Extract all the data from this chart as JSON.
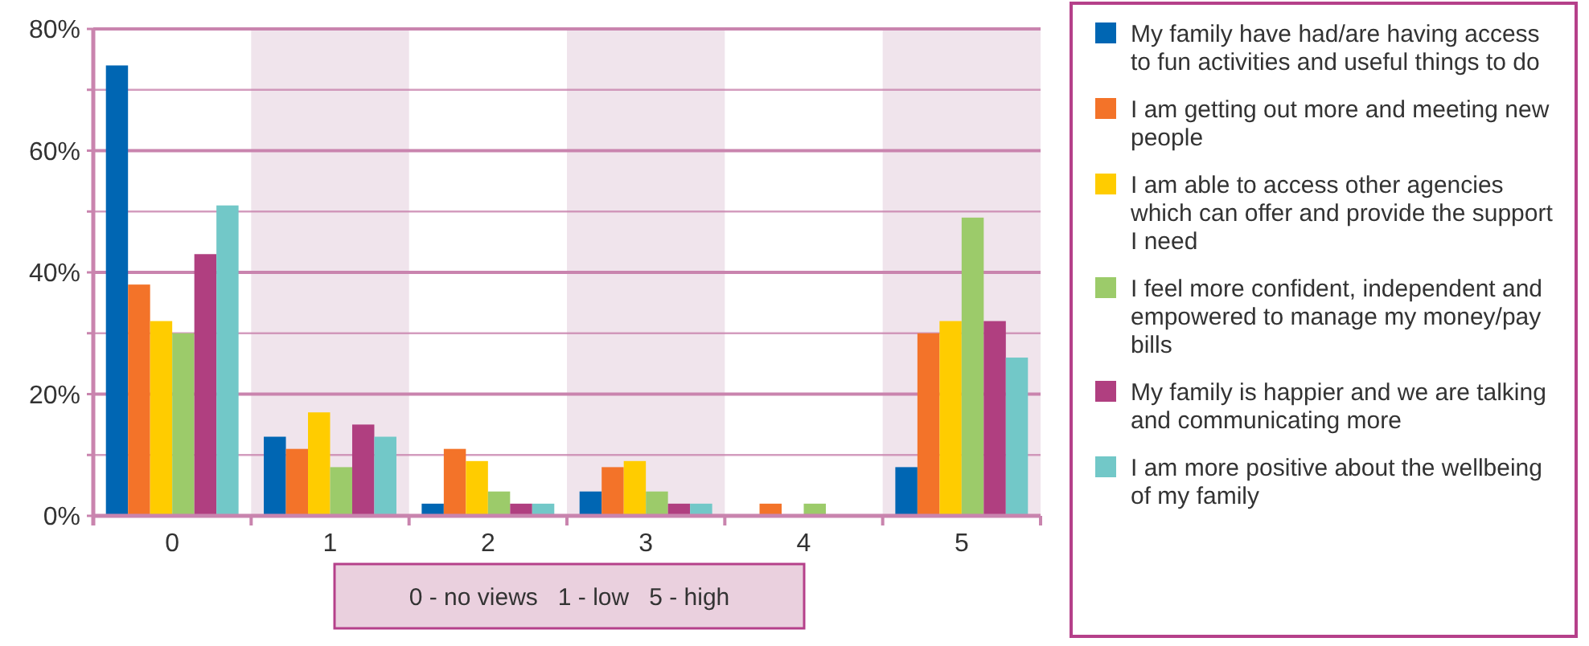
{
  "chart_data": {
    "type": "bar",
    "categories": [
      "0",
      "1",
      "2",
      "3",
      "4",
      "5"
    ],
    "series": [
      {
        "name": "My family have had/are having access to fun activities and useful things to do",
        "color": "#0066b3",
        "values": [
          74,
          13,
          2,
          4,
          0,
          8
        ]
      },
      {
        "name": "I am getting out more and meeting new people",
        "color": "#f37329",
        "values": [
          38,
          11,
          11,
          8,
          2,
          30
        ]
      },
      {
        "name": "I am able to access other agencies which can offer and provide the support I need",
        "color": "#ffcc00",
        "values": [
          32,
          17,
          9,
          9,
          0,
          32
        ]
      },
      {
        "name": "I feel more confident, independent and empowered to manage my money/pay bills",
        "color": "#9ccb6a",
        "values": [
          30,
          8,
          4,
          4,
          2,
          49
        ]
      },
      {
        "name": "My family is happier and we are talking and communicating more",
        "color": "#b03f80",
        "values": [
          43,
          15,
          2,
          2,
          0,
          32
        ]
      },
      {
        "name": "I am more positive about the wellbeing of my family",
        "color": "#72c8c8",
        "values": [
          51,
          13,
          2,
          2,
          0,
          26
        ]
      }
    ],
    "ylim": [
      0,
      80
    ],
    "yticks": [
      {
        "value": 0,
        "label": "0%"
      },
      {
        "value": 10,
        "label": null
      },
      {
        "value": 20,
        "label": "20%"
      },
      {
        "value": 30,
        "label": null
      },
      {
        "value": 40,
        "label": "40%"
      },
      {
        "value": 50,
        "label": null
      },
      {
        "value": 60,
        "label": "60%"
      },
      {
        "value": 70,
        "label": null
      },
      {
        "value": 80,
        "label": "80%"
      }
    ],
    "grid": "y",
    "legend": "right",
    "bands": [
      {
        "axis": "x",
        "from": "1",
        "to": "1",
        "color": "#f0e4ec"
      },
      {
        "axis": "x",
        "from": "3",
        "to": "3",
        "color": "#f0e4ec"
      },
      {
        "axis": "x",
        "from": "5",
        "to": "5",
        "color": "#f0e4ec"
      }
    ],
    "annotations": [
      "0 - no views   1 - low   5 - high"
    ]
  }
}
